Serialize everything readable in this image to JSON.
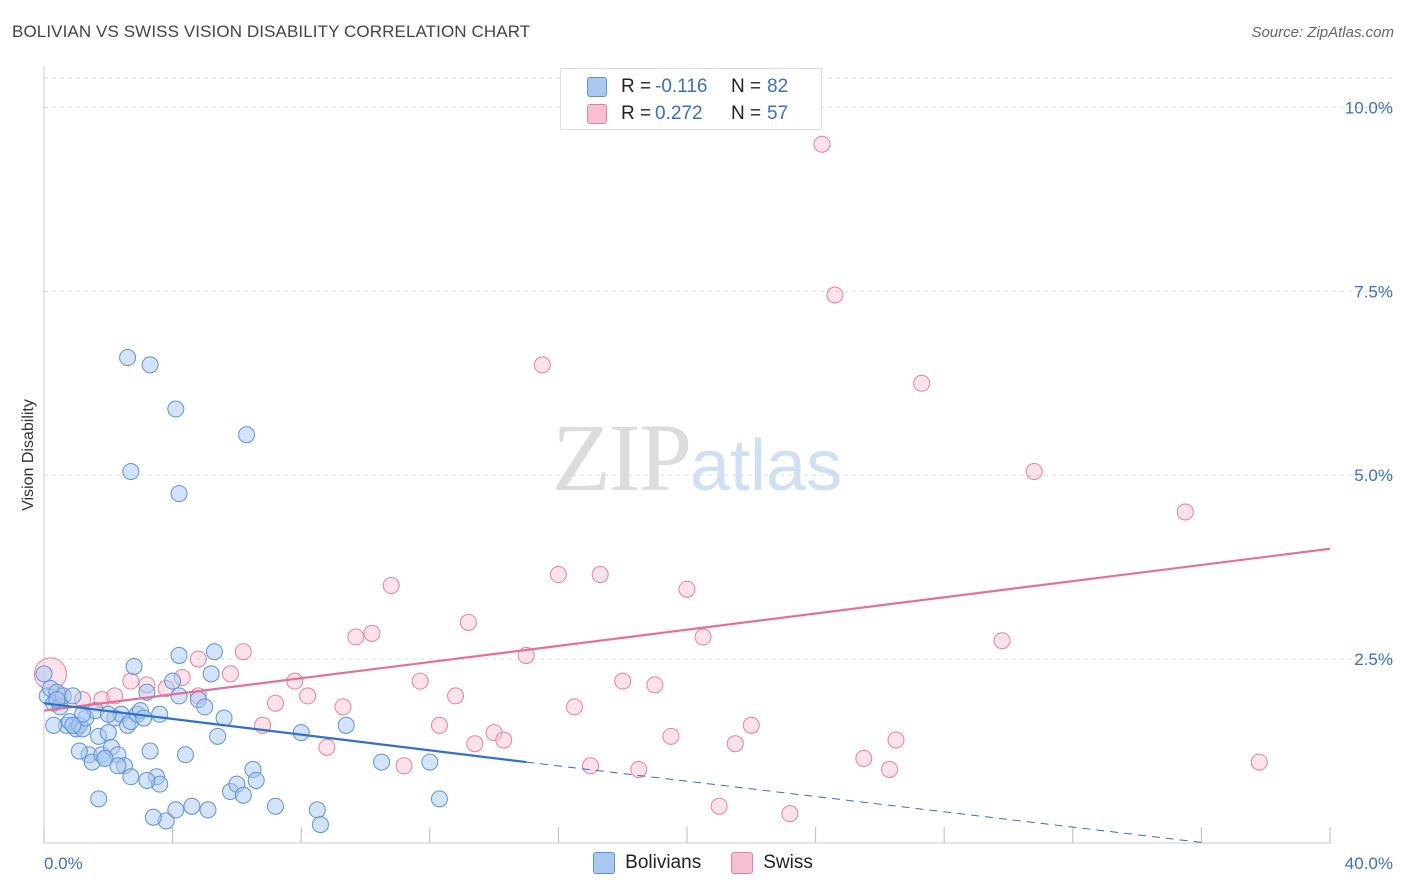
{
  "title": "BOLIVIAN VS SWISS VISION DISABILITY CORRELATION CHART",
  "source": "Source: ZipAtlas.com",
  "watermark": {
    "zip": "ZIP",
    "atlas": "atlas"
  },
  "legend_top": {
    "rows": [
      {
        "label": "R =",
        "r": "-0.116",
        "n_label": "N =",
        "n": "82",
        "series": "Bolivians"
      },
      {
        "label": "R =",
        "r": "0.272",
        "n_label": "N =",
        "n": "57",
        "series": "Swiss"
      }
    ]
  },
  "legend_bottom": {
    "bolivians": "Bolivians",
    "swiss": "Swiss"
  },
  "colors": {
    "blue_fill": "#a9c8f0",
    "blue_stroke": "#5b93d8",
    "blue_line": "#2f6fcf",
    "pink_fill": "#f7bfd2",
    "pink_stroke": "#e8809f",
    "pink_line": "#e4709a",
    "tick_label": "#3a6fc4",
    "grid": "#dddddd"
  },
  "chart_data": {
    "type": "scatter",
    "title": "BOLIVIAN VS SWISS VISION DISABILITY CORRELATION CHART",
    "xlabel": "",
    "ylabel": "Vision Disability",
    "xlim": [
      0,
      40
    ],
    "ylim": [
      0,
      10.4
    ],
    "x_tick_labels": [
      {
        "value": 0,
        "label": "0.0%"
      },
      {
        "value": 40,
        "label": "40.0%"
      }
    ],
    "y_tick_labels": [
      {
        "value": 2.5,
        "label": "2.5%"
      },
      {
        "value": 5.0,
        "label": "5.0%"
      },
      {
        "value": 7.5,
        "label": "7.5%"
      },
      {
        "value": 10.0,
        "label": "10.0%"
      }
    ],
    "x_minor_ticks": [
      0,
      4,
      8,
      12,
      16,
      20,
      24,
      28,
      32,
      36,
      40
    ],
    "grid": true,
    "legend_position": "top-center",
    "series": [
      {
        "name": "Bolivians",
        "r": -0.116,
        "n": 82,
        "trend": {
          "x0": 0,
          "y0": 1.9,
          "x1": 15,
          "y1": 1.1
        },
        "trend_extension": {
          "x0": 15,
          "y0": 1.1,
          "x1": 40,
          "y1": -0.2
        },
        "points": [
          [
            0.1,
            2.0
          ],
          [
            0.2,
            2.1
          ],
          [
            0.3,
            1.9
          ],
          [
            0.4,
            2.05
          ],
          [
            0.5,
            1.85
          ],
          [
            0.6,
            2.0
          ],
          [
            0.7,
            1.6
          ],
          [
            0.8,
            1.65
          ],
          [
            0.9,
            2.0
          ],
          [
            1.0,
            1.55
          ],
          [
            1.1,
            1.6
          ],
          [
            1.2,
            1.55
          ],
          [
            1.3,
            1.7
          ],
          [
            1.4,
            1.2
          ],
          [
            1.5,
            1.1
          ],
          [
            1.6,
            1.8
          ],
          [
            1.7,
            1.45
          ],
          [
            1.8,
            1.2
          ],
          [
            1.9,
            1.15
          ],
          [
            2.0,
            1.5
          ],
          [
            2.1,
            1.3
          ],
          [
            2.2,
            1.7
          ],
          [
            2.3,
            1.2
          ],
          [
            2.4,
            1.75
          ],
          [
            2.5,
            1.05
          ],
          [
            2.6,
            1.6
          ],
          [
            2.7,
            1.65
          ],
          [
            2.8,
            2.4
          ],
          [
            2.9,
            1.75
          ],
          [
            3.0,
            1.8
          ],
          [
            3.1,
            1.7
          ],
          [
            3.2,
            2.05
          ],
          [
            3.3,
            1.25
          ],
          [
            3.5,
            0.9
          ],
          [
            3.6,
            0.8
          ],
          [
            3.8,
            0.3
          ],
          [
            4.0,
            2.2
          ],
          [
            4.2,
            2.0
          ],
          [
            4.4,
            1.2
          ],
          [
            4.6,
            0.5
          ],
          [
            4.8,
            1.95
          ],
          [
            5.0,
            1.85
          ],
          [
            5.2,
            2.3
          ],
          [
            5.4,
            1.45
          ],
          [
            5.6,
            1.7
          ],
          [
            5.8,
            0.7
          ],
          [
            6.0,
            0.8
          ],
          [
            6.2,
            0.65
          ],
          [
            6.5,
            1.0
          ],
          [
            0.3,
            1.6
          ],
          [
            2.7,
            0.9
          ],
          [
            1.7,
            0.6
          ],
          [
            3.4,
            0.35
          ],
          [
            4.1,
            0.45
          ],
          [
            5.3,
            2.6
          ],
          [
            4.2,
            2.55
          ],
          [
            3.6,
            1.75
          ],
          [
            2.0,
            1.75
          ],
          [
            1.2,
            1.75
          ],
          [
            0.9,
            1.6
          ],
          [
            2.6,
            6.6
          ],
          [
            3.3,
            6.5
          ],
          [
            4.1,
            5.9
          ],
          [
            6.3,
            5.55
          ],
          [
            2.7,
            5.05
          ],
          [
            4.2,
            4.75
          ],
          [
            8.0,
            1.5
          ],
          [
            8.5,
            0.45
          ],
          [
            8.6,
            0.25
          ],
          [
            9.4,
            1.6
          ],
          [
            10.5,
            1.1
          ],
          [
            12.0,
            1.1
          ],
          [
            12.3,
            0.6
          ],
          [
            7.2,
            0.5
          ],
          [
            6.6,
            0.85
          ],
          [
            5.1,
            0.45
          ],
          [
            3.2,
            0.85
          ],
          [
            1.1,
            1.25
          ],
          [
            1.9,
            1.15
          ],
          [
            2.3,
            1.05
          ],
          [
            0.4,
            1.95
          ],
          [
            0.0,
            2.3
          ]
        ]
      },
      {
        "name": "Swiss",
        "r": 0.272,
        "n": 57,
        "trend": {
          "x0": 0,
          "y0": 1.8,
          "x1": 40,
          "y1": 4.0
        },
        "points": [
          [
            0.2,
            2.3
          ],
          [
            0.5,
            2.0
          ],
          [
            1.2,
            1.95
          ],
          [
            1.8,
            1.95
          ],
          [
            2.2,
            2.0
          ],
          [
            2.7,
            2.2
          ],
          [
            3.2,
            2.15
          ],
          [
            3.8,
            2.1
          ],
          [
            4.3,
            2.25
          ],
          [
            4.8,
            2.0
          ],
          [
            4.8,
            2.5
          ],
          [
            5.8,
            2.3
          ],
          [
            6.2,
            2.6
          ],
          [
            6.8,
            1.6
          ],
          [
            7.2,
            1.9
          ],
          [
            7.8,
            2.2
          ],
          [
            8.2,
            2.0
          ],
          [
            8.8,
            1.3
          ],
          [
            9.3,
            1.85
          ],
          [
            9.7,
            2.8
          ],
          [
            10.2,
            2.85
          ],
          [
            10.8,
            3.5
          ],
          [
            11.2,
            1.05
          ],
          [
            11.7,
            2.2
          ],
          [
            12.3,
            1.6
          ],
          [
            12.8,
            2.0
          ],
          [
            13.2,
            3.0
          ],
          [
            13.4,
            1.35
          ],
          [
            14.0,
            1.5
          ],
          [
            14.3,
            1.4
          ],
          [
            15.0,
            2.55
          ],
          [
            16.0,
            3.65
          ],
          [
            16.5,
            1.85
          ],
          [
            17.0,
            1.05
          ],
          [
            17.3,
            3.65
          ],
          [
            18.0,
            2.2
          ],
          [
            18.5,
            1.0
          ],
          [
            19.0,
            2.15
          ],
          [
            19.5,
            1.45
          ],
          [
            20.0,
            3.45
          ],
          [
            20.5,
            2.8
          ],
          [
            21.0,
            0.5
          ],
          [
            21.5,
            1.35
          ],
          [
            22.0,
            1.6
          ],
          [
            23.2,
            0.4
          ],
          [
            25.5,
            1.15
          ],
          [
            26.3,
            1.0
          ],
          [
            26.5,
            1.4
          ],
          [
            27.3,
            6.25
          ],
          [
            29.8,
            2.75
          ],
          [
            30.8,
            5.05
          ],
          [
            35.5,
            4.5
          ],
          [
            37.8,
            1.1
          ],
          [
            15.5,
            6.5
          ],
          [
            24.6,
            7.45
          ],
          [
            23.9,
            9.9
          ],
          [
            24.2,
            9.5
          ]
        ]
      }
    ]
  }
}
